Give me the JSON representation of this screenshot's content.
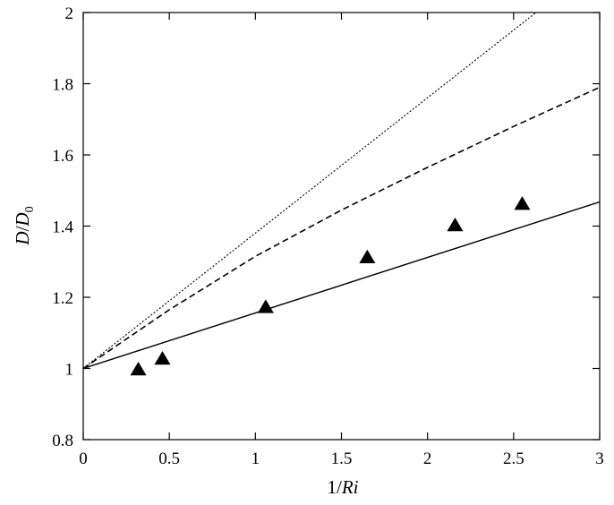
{
  "chart_data": {
    "type": "scatter",
    "title": "",
    "xlabel": {
      "prefix": "1/",
      "main": "Ri"
    },
    "ylabel": {
      "main": "D",
      "sep": "/",
      "main2": "D",
      "sub": "0"
    },
    "xlim": [
      0,
      3
    ],
    "ylim": [
      0.8,
      2
    ],
    "xticks": [
      0,
      0.5,
      1,
      1.5,
      2,
      2.5,
      3
    ],
    "xtick_labels": [
      "0",
      "0.5",
      "1",
      "1.5",
      "2",
      "2.5",
      "3"
    ],
    "yticks": [
      0.8,
      1,
      1.2,
      1.4,
      1.6,
      1.8,
      2
    ],
    "ytick_labels": [
      "0.8",
      "1",
      "1.2",
      "1.4",
      "1.6",
      "1.8",
      "2"
    ],
    "grid": false,
    "legend": "none",
    "points": {
      "marker": "triangle",
      "x": [
        0.32,
        0.46,
        1.06,
        1.65,
        2.16,
        2.55
      ],
      "y": [
        0.995,
        1.025,
        1.17,
        1.31,
        1.4,
        1.46
      ]
    },
    "lines": [
      {
        "style": "solid",
        "x": [
          0,
          3
        ],
        "y": [
          1.0,
          1.468
        ]
      },
      {
        "style": "dashed",
        "x": [
          0,
          0.5,
          1,
          1.5,
          2,
          2.5,
          3
        ],
        "y": [
          1.0,
          1.165,
          1.315,
          1.445,
          1.565,
          1.68,
          1.79
        ]
      },
      {
        "style": "dotted",
        "x": [
          0,
          2.63
        ],
        "y": [
          1.0,
          2.0
        ]
      }
    ]
  }
}
